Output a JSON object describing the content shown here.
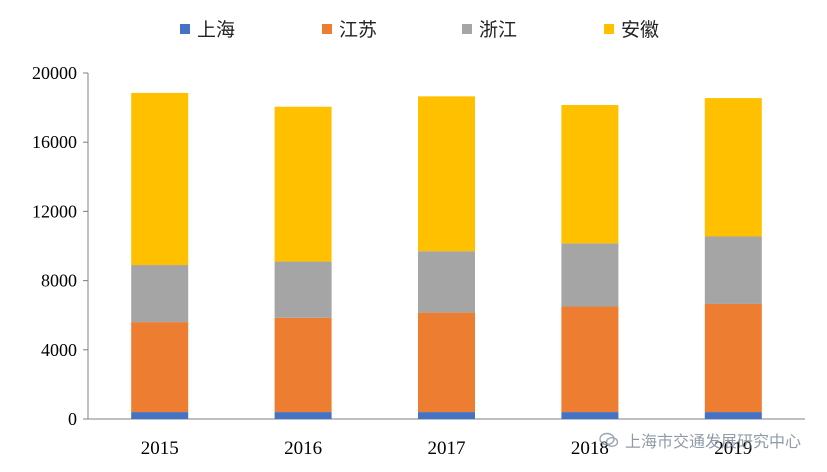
{
  "chart_data": {
    "type": "bar",
    "stacked": true,
    "categories": [
      "2015",
      "2016",
      "2017",
      "2018",
      "2019"
    ],
    "series": [
      {
        "name": "上海",
        "color": "#4472C4",
        "values": [
          400,
          400,
          400,
          400,
          400
        ]
      },
      {
        "name": "江苏",
        "color": "#ED7D31",
        "values": [
          5200,
          5450,
          5750,
          6100,
          6250
        ]
      },
      {
        "name": "浙江",
        "color": "#A5A5A5",
        "values": [
          3300,
          3250,
          3550,
          3650,
          3900
        ]
      },
      {
        "name": "安徽",
        "color": "#FFC000",
        "values": [
          9950,
          8950,
          8950,
          8000,
          8000
        ]
      }
    ],
    "ylim": [
      0,
      20000
    ],
    "yticks": [
      "0",
      "4000",
      "8000",
      "12000",
      "16000",
      "20000"
    ],
    "legend_position": "top",
    "grid": false
  },
  "watermark": {
    "text": "上海市交通发展研究中心",
    "icon": "wechat-icon"
  }
}
